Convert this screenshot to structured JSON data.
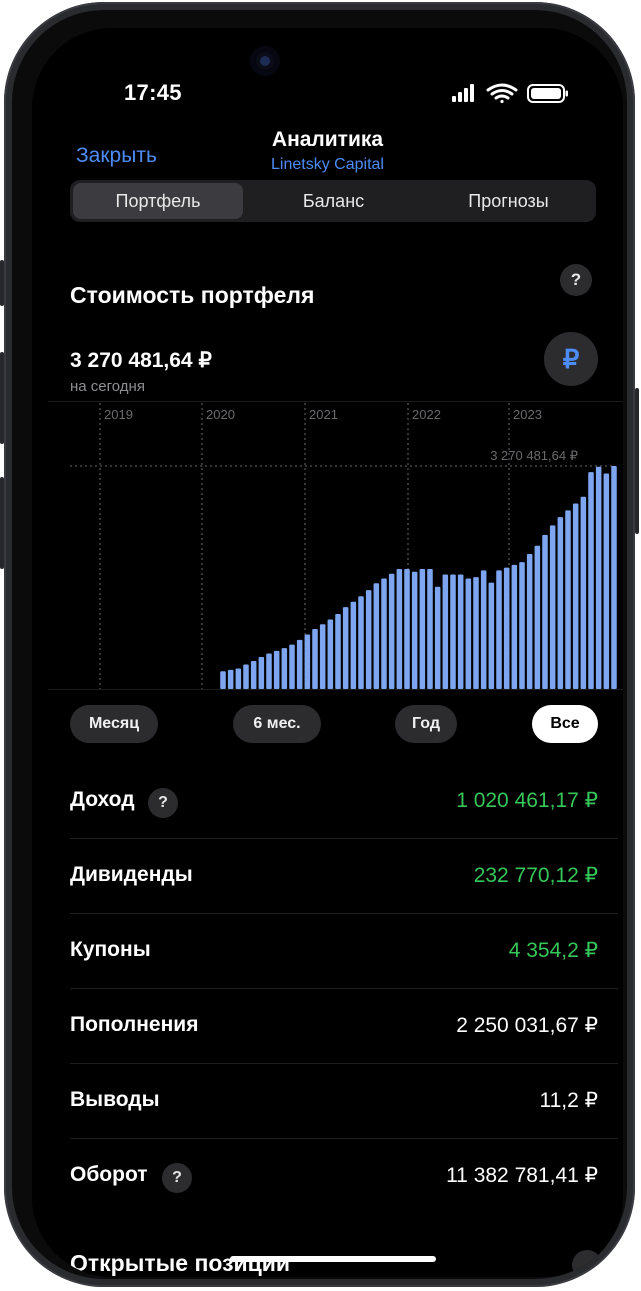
{
  "status_bar": {
    "time": "17:45"
  },
  "nav": {
    "close_label": "Закрыть",
    "title": "Аналитика",
    "subtitle": "Linetsky Capital"
  },
  "tabs": [
    {
      "label": "Портфель",
      "active": true
    },
    {
      "label": "Баланс",
      "active": false
    },
    {
      "label": "Прогнозы",
      "active": false
    }
  ],
  "portfolio": {
    "section_title": "Стоимость портфеля",
    "help_symbol": "?",
    "value": "3 270 481,64 ₽",
    "value_caption": "на сегодня",
    "currency_symbol": "₽"
  },
  "chart_data": {
    "type": "bar",
    "x_ticks": [
      "2019",
      "2020",
      "2021",
      "2022",
      "2023"
    ],
    "reference_label": "3 270 481,64 ₽",
    "reference_value": 3270481.64,
    "ylim": [
      0,
      3500000
    ],
    "grid": "vertical dotted at year boundaries",
    "bar_color": "#7ea6f0",
    "values": [
      260000,
      280000,
      300000,
      360000,
      410000,
      470000,
      520000,
      560000,
      600000,
      650000,
      720000,
      800000,
      880000,
      950000,
      1020000,
      1100000,
      1200000,
      1280000,
      1360000,
      1450000,
      1550000,
      1620000,
      1690000,
      1760000,
      1760000,
      1720000,
      1760000,
      1760000,
      1500000,
      1680000,
      1680000,
      1680000,
      1620000,
      1640000,
      1740000,
      1560000,
      1740000,
      1780000,
      1820000,
      1860000,
      1980000,
      2100000,
      2260000,
      2400000,
      2520000,
      2620000,
      2720000,
      2820000,
      3180000,
      3260000,
      3160000,
      3270481.64
    ]
  },
  "ranges": [
    {
      "label": "Месяц",
      "active": false
    },
    {
      "label": "6 мес.",
      "active": false
    },
    {
      "label": "Год",
      "active": false
    },
    {
      "label": "Все",
      "active": true
    }
  ],
  "stats": [
    {
      "label": "Доход",
      "value": "1 020 461,17 ₽",
      "green": true,
      "help": true
    },
    {
      "label": "Дивиденды",
      "value": "232 770,12 ₽",
      "green": true,
      "help": false
    },
    {
      "label": "Купоны",
      "value": "4 354,2 ₽",
      "green": true,
      "help": false
    },
    {
      "label": "Пополнения",
      "value": "2 250 031,67 ₽",
      "green": false,
      "help": false
    },
    {
      "label": "Выводы",
      "value": "11,2 ₽",
      "green": false,
      "help": false
    },
    {
      "label": "Оборот",
      "value": "11 382 781,41 ₽",
      "green": false,
      "help": true
    }
  ],
  "open_positions_title": "Открытые позиции",
  "colors": {
    "accent": "#4d8cf5",
    "positive": "#35c759",
    "background": "#000000",
    "card": "#2c2c2f"
  }
}
